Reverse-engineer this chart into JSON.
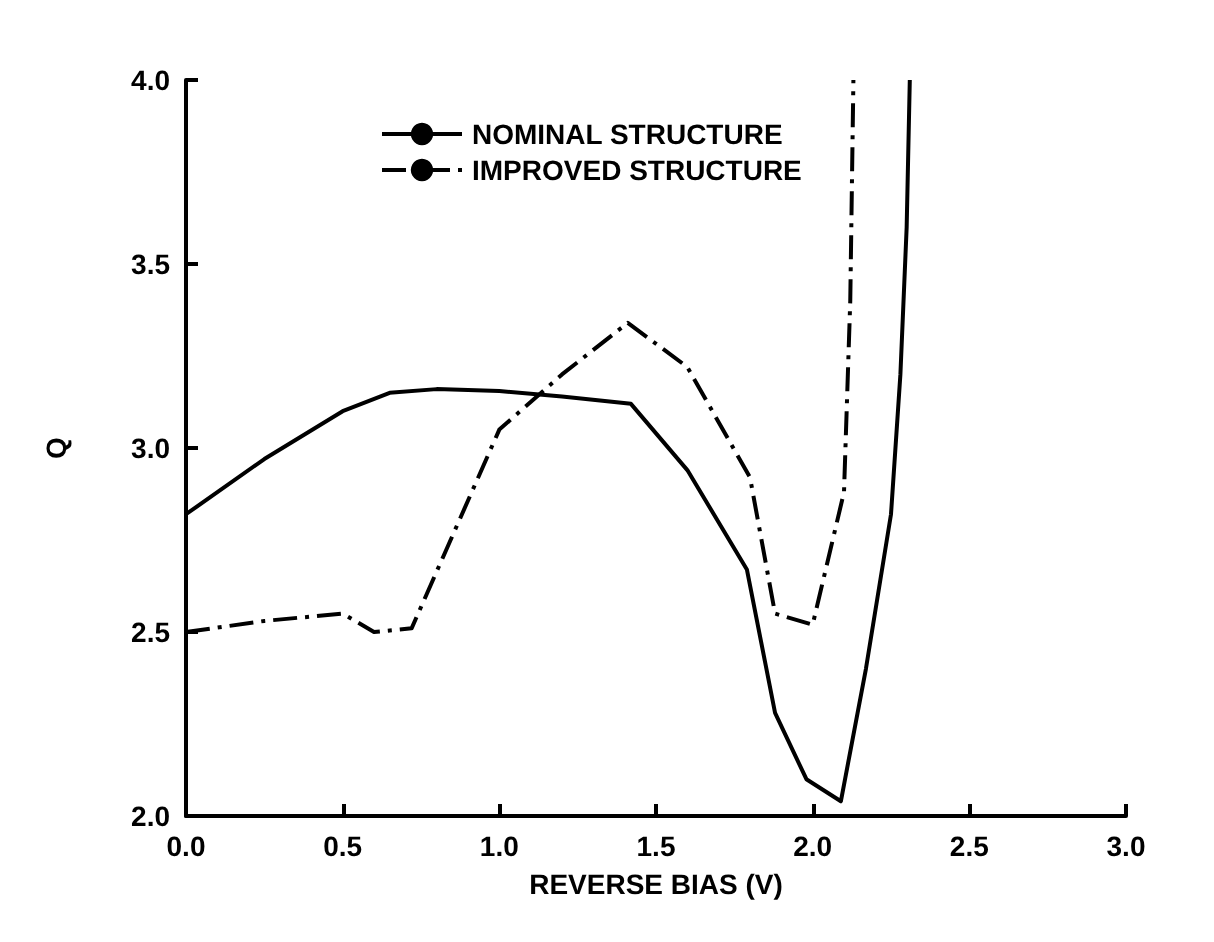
{
  "chart_data": {
    "type": "line",
    "xlabel": "REVERSE BIAS (V)",
    "ylabel": "Q",
    "xlim": [
      0,
      3
    ],
    "xticks": [
      {
        "value": 0,
        "label": "0.0"
      },
      0.5,
      {
        "value": 1,
        "label": "1.0"
      },
      1.5,
      {
        "value": 2,
        "label": "2.0"
      },
      2.5,
      {
        "value": 3,
        "label": "3.0"
      }
    ],
    "ylim": [
      2,
      4
    ],
    "yticks": [
      {
        "value": 2,
        "label": "2.0"
      },
      2.5,
      {
        "value": 3,
        "label": "3.0"
      },
      3.5,
      {
        "value": 4,
        "label": "4.0"
      }
    ],
    "grid": false,
    "legend": "top left",
    "marker": "none",
    "series": [
      {
        "name": "NOMINAL STRUCTURE",
        "color": "#000000",
        "line_style": "solid",
        "x": [
          0,
          0.25,
          0.5,
          0.65,
          0.8,
          1.0,
          1.2,
          1.42,
          1.6,
          1.79,
          1.88,
          1.98,
          2.09,
          2.17,
          2.25,
          2.28,
          2.3,
          2.31
        ],
        "values": [
          2.82,
          2.97,
          3.1,
          3.15,
          3.16,
          3.155,
          3.14,
          3.12,
          2.94,
          2.67,
          2.28,
          2.1,
          2.04,
          2.4,
          2.82,
          3.2,
          3.6,
          4.0
        ]
      },
      {
        "name": "IMPROVED STRUCTURE",
        "color": "#000000",
        "line_style": "dashdot",
        "x": [
          0,
          0.25,
          0.5,
          0.6,
          0.72,
          1.0,
          1.2,
          1.41,
          1.6,
          1.8,
          1.88,
          2.0,
          2.1,
          2.12,
          2.13
        ],
        "values": [
          2.5,
          2.53,
          2.55,
          2.5,
          2.51,
          3.05,
          3.2,
          3.34,
          3.22,
          2.92,
          2.55,
          2.52,
          2.88,
          3.4,
          4.0
        ]
      }
    ]
  }
}
